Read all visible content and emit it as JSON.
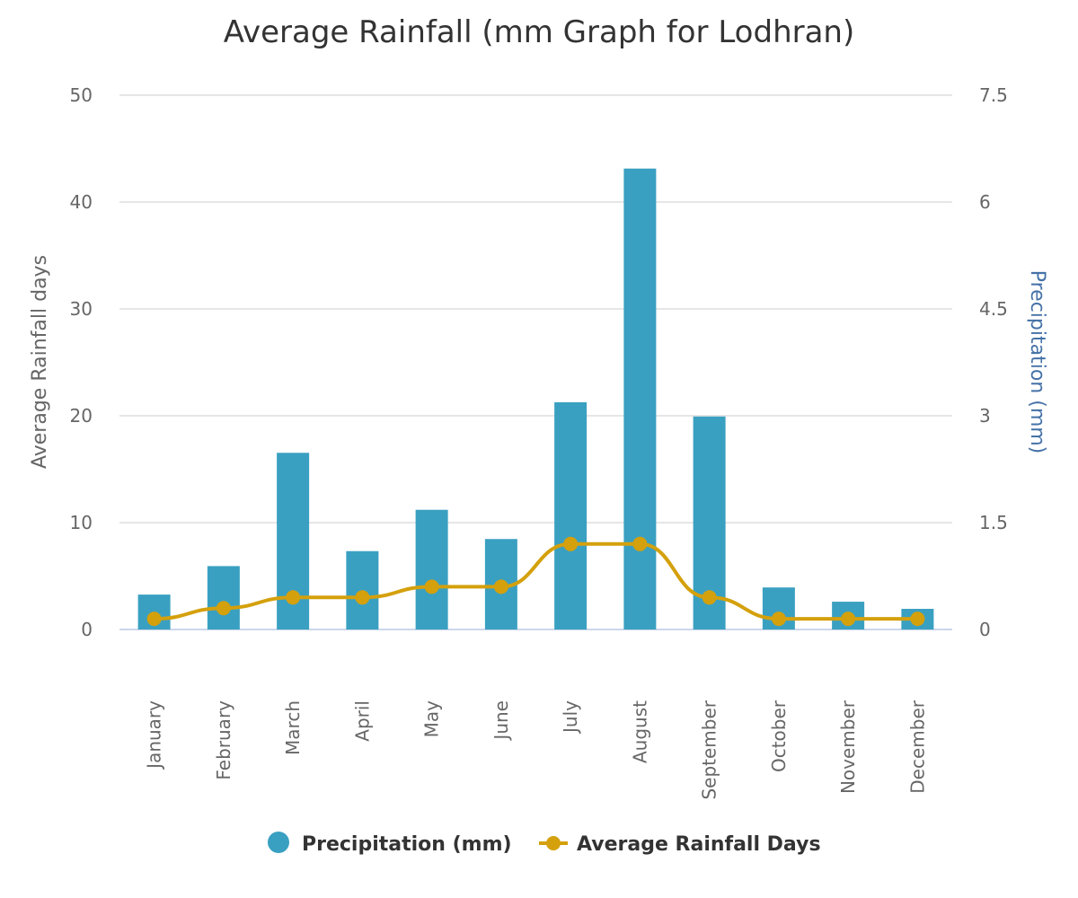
{
  "chart_data": {
    "type": "bar",
    "title": "Average Rainfall (mm Graph for Lodhran)",
    "categories": [
      "January",
      "February",
      "March",
      "April",
      "May",
      "June",
      "July",
      "August",
      "September",
      "October",
      "November",
      "December"
    ],
    "series": [
      {
        "name": "Precipitation (mm)",
        "type": "bar",
        "axis": "right",
        "color": "#3aa0c1",
        "values": [
          0.49,
          0.89,
          2.48,
          1.1,
          1.68,
          1.27,
          3.19,
          6.47,
          2.99,
          0.59,
          0.39,
          0.29
        ]
      },
      {
        "name": "Average Rainfall Days",
        "type": "line",
        "axis": "left",
        "color": "#d4a00c",
        "values": [
          1,
          2,
          3,
          3,
          4,
          4,
          8,
          8,
          3,
          1,
          1,
          1
        ]
      }
    ],
    "left_axis": {
      "title": "Average Rainfall days",
      "range": [
        0,
        50
      ],
      "ticks": [
        "0",
        "10",
        "20",
        "30",
        "40",
        "50"
      ],
      "tick_values": [
        0,
        10,
        20,
        30,
        40,
        50
      ]
    },
    "right_axis": {
      "title": "Precipitation (mm)",
      "range": [
        0,
        7.5
      ],
      "ticks": [
        "0",
        "1.5",
        "3",
        "4.5",
        "6",
        "7.5"
      ],
      "tick_values": [
        0,
        1.5,
        3,
        4.5,
        6,
        7.5
      ]
    },
    "grid": true,
    "legend": {
      "position": "bottom-center",
      "items": [
        "Precipitation (mm)",
        "Average Rainfall Days"
      ]
    }
  }
}
